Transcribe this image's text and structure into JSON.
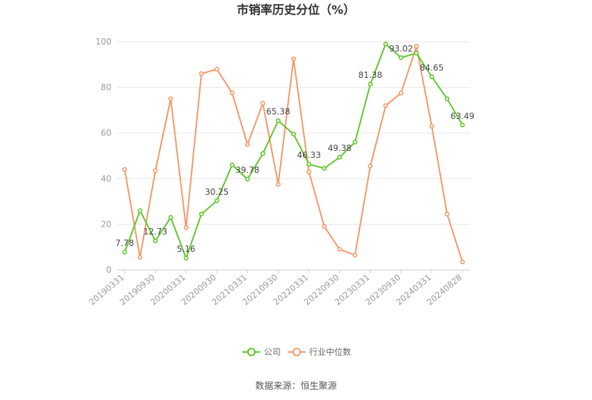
{
  "colors": {
    "company": "#5cc627",
    "industry": "#f79564",
    "grid": "#e6e6e6",
    "axis": "#cccccc"
  },
  "legend": {
    "company": "公司",
    "industry": "行业中位数"
  },
  "source": "数据来源：恒生聚源",
  "chart_data": {
    "type": "line",
    "title": "市销率历史分位（%）",
    "xlabel": "",
    "ylabel": "",
    "ylim": [
      0,
      100
    ],
    "yticks": [
      0,
      20,
      40,
      60,
      80,
      100
    ],
    "grid": true,
    "legend_position": "bottom",
    "x_tick_labels": [
      "20190331",
      "20190930",
      "20200331",
      "20200930",
      "20210331",
      "20210930",
      "20220331",
      "20220930",
      "20230331",
      "20230930",
      "20240331",
      "20240828"
    ],
    "series": [
      {
        "name": "公司",
        "values": [
          7.78,
          26,
          12.73,
          23,
          5.16,
          24.5,
          30.25,
          46,
          39.78,
          51,
          65.38,
          59.5,
          46.33,
          44.5,
          49.38,
          56,
          81.38,
          99,
          93.02,
          95,
          84.65,
          75,
          63.49
        ],
        "data_labels": {
          "0": "7.78",
          "2": "12.73",
          "4": "5.16",
          "6": "30.25",
          "8": "39.78",
          "10": "65.38",
          "12": "46.33",
          "14": "49.38",
          "16": "81.38",
          "18": "93.02",
          "20": "84.65",
          "22": "63.49"
        }
      },
      {
        "name": "行业中位数",
        "values": [
          44,
          5.5,
          43.5,
          75,
          18.5,
          86,
          88,
          77.5,
          55,
          73,
          37.5,
          92.5,
          43,
          19,
          9,
          6.5,
          45.5,
          72,
          77.5,
          98,
          63,
          24.5,
          3.5
        ]
      }
    ]
  }
}
